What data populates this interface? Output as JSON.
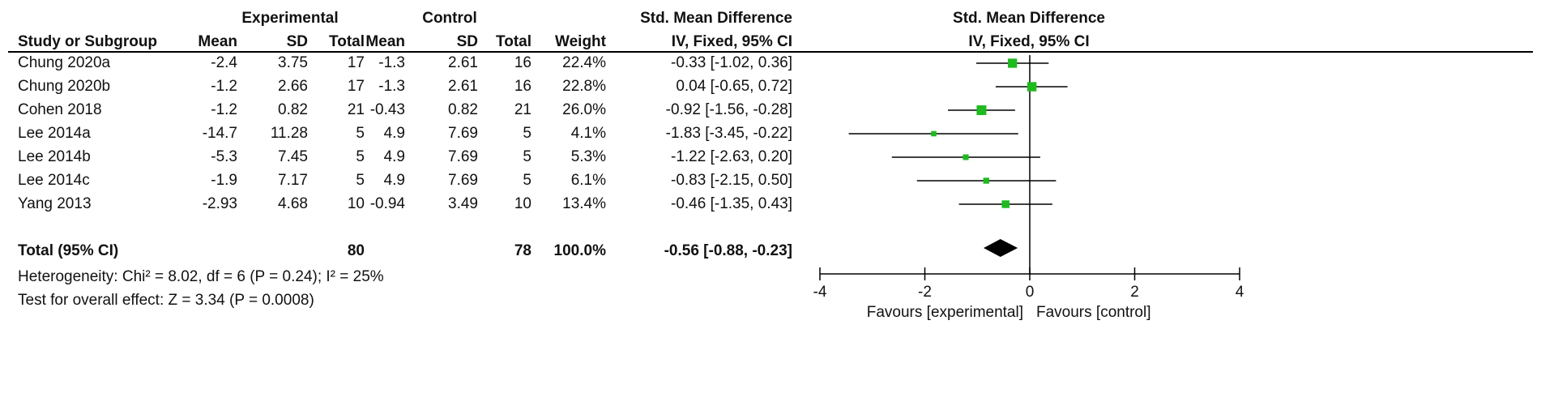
{
  "header": {
    "experimental_label": "Experimental",
    "control_label": "Control",
    "smd_label": "Std. Mean Difference",
    "smd_method": "IV, Fixed, 95% CI",
    "plot_label": "Std. Mean Difference",
    "plot_method": "IV, Fixed, 95% CI",
    "col_study": "Study or Subgroup",
    "col_mean_e": "Mean",
    "col_sd_e": "SD",
    "col_total_e": "Total",
    "col_mean_c": "Mean",
    "col_sd_c": "SD",
    "col_total_c": "Total",
    "col_weight": "Weight"
  },
  "rows": [
    {
      "study": "Chung 2020a",
      "mean_e": "-2.4",
      "sd_e": "3.75",
      "total_e": "17",
      "mean_c": "-1.3",
      "sd_c": "2.61",
      "total_c": "16",
      "weight": "22.4%",
      "ci": "-0.33 [-1.02, 0.36]"
    },
    {
      "study": "Chung 2020b",
      "mean_e": "-1.2",
      "sd_e": "2.66",
      "total_e": "17",
      "mean_c": "-1.3",
      "sd_c": "2.61",
      "total_c": "16",
      "weight": "22.8%",
      "ci": "0.04 [-0.65, 0.72]"
    },
    {
      "study": "Cohen 2018",
      "mean_e": "-1.2",
      "sd_e": "0.82",
      "total_e": "21",
      "mean_c": "-0.43",
      "sd_c": "0.82",
      "total_c": "21",
      "weight": "26.0%",
      "ci": "-0.92 [-1.56, -0.28]"
    },
    {
      "study": "Lee 2014a",
      "mean_e": "-14.7",
      "sd_e": "11.28",
      "total_e": "5",
      "mean_c": "4.9",
      "sd_c": "7.69",
      "total_c": "5",
      "weight": "4.1%",
      "ci": "-1.83 [-3.45, -0.22]"
    },
    {
      "study": "Lee 2014b",
      "mean_e": "-5.3",
      "sd_e": "7.45",
      "total_e": "5",
      "mean_c": "4.9",
      "sd_c": "7.69",
      "total_c": "5",
      "weight": "5.3%",
      "ci": "-1.22 [-2.63, 0.20]"
    },
    {
      "study": "Lee 2014c",
      "mean_e": "-1.9",
      "sd_e": "7.17",
      "total_e": "5",
      "mean_c": "4.9",
      "sd_c": "7.69",
      "total_c": "5",
      "weight": "6.1%",
      "ci": "-0.83 [-2.15, 0.50]"
    },
    {
      "study": "Yang 2013",
      "mean_e": "-2.93",
      "sd_e": "4.68",
      "total_e": "10",
      "mean_c": "-0.94",
      "sd_c": "3.49",
      "total_c": "10",
      "weight": "13.4%",
      "ci": "-0.46 [-1.35, 0.43]"
    }
  ],
  "total": {
    "label": "Total (95% CI)",
    "total_e": "80",
    "total_c": "78",
    "weight": "100.0%",
    "ci": "-0.56 [-0.88, -0.23]"
  },
  "footer": {
    "heterogeneity": "Heterogeneity: Chi² = 8.02, df = 6 (P = 0.24); I² = 25%",
    "overall": "Test for overall effect: Z = 3.34 (P = 0.0008)"
  },
  "chart_data": {
    "type": "forest",
    "title": "Std. Mean Difference",
    "subtitle": "IV, Fixed, 95% CI",
    "xlim": [
      -4,
      4
    ],
    "xticks": [
      "-4",
      "-2",
      "0",
      "2",
      "4"
    ],
    "xtick_values": [
      -4,
      -2,
      0,
      2,
      4
    ],
    "favours_left": "Favours [experimental]",
    "favours_right": "Favours [control]",
    "colors": {
      "marker": "#1fba1f",
      "line": "#000000",
      "diamond": "#000000"
    },
    "studies": [
      {
        "name": "Chung 2020a",
        "estimate": -0.33,
        "lower": -1.02,
        "upper": 0.36,
        "weight": 22.4
      },
      {
        "name": "Chung 2020b",
        "estimate": 0.04,
        "lower": -0.65,
        "upper": 0.72,
        "weight": 22.8
      },
      {
        "name": "Cohen 2018",
        "estimate": -0.92,
        "lower": -1.56,
        "upper": -0.28,
        "weight": 26.0
      },
      {
        "name": "Lee 2014a",
        "estimate": -1.83,
        "lower": -3.45,
        "upper": -0.22,
        "weight": 4.1
      },
      {
        "name": "Lee 2014b",
        "estimate": -1.22,
        "lower": -2.63,
        "upper": 0.2,
        "weight": 5.3
      },
      {
        "name": "Lee 2014c",
        "estimate": -0.83,
        "lower": -2.15,
        "upper": 0.5,
        "weight": 6.1
      },
      {
        "name": "Yang 2013",
        "estimate": -0.46,
        "lower": -1.35,
        "upper": 0.43,
        "weight": 13.4
      }
    ],
    "pooled": {
      "estimate": -0.56,
      "lower": -0.88,
      "upper": -0.23
    }
  }
}
